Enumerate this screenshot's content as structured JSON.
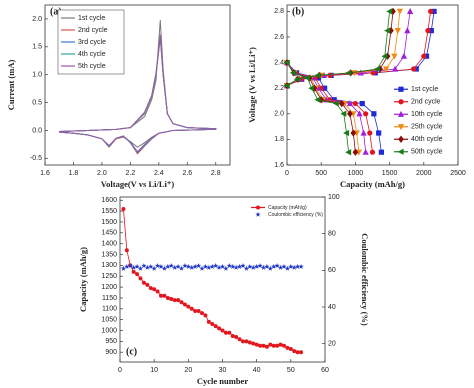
{
  "chart_data": [
    {
      "type": "line",
      "label": "(a)",
      "xlabel": "Voltage(V vs Li/Li⁺)",
      "ylabel": "Current (mA)",
      "xlim": [
        1.6,
        2.9
      ],
      "ylim": [
        -0.62,
        2.25
      ],
      "xticks": [
        1.6,
        1.8,
        {
          "value": 2,
          "label": "2.0"
        },
        2.2,
        2.4,
        2.6,
        2.8
      ],
      "yticks": [
        -0.5,
        {
          "value": 0,
          "label": "0.0"
        },
        0.5,
        {
          "value": 1,
          "label": "1.0"
        },
        1.5,
        {
          "value": 2,
          "label": "2.0"
        }
      ],
      "legend": "upper left",
      "legend_frame": true,
      "x": [
        1.7,
        1.9,
        2.1,
        2.2,
        2.3,
        2.35,
        2.38,
        2.41,
        2.43,
        2.46,
        2.5,
        2.6,
        2.8,
        2.8,
        2.5,
        2.4,
        2.35,
        2.3,
        2.25,
        2.2,
        2.15,
        2.1,
        2.05,
        2.0,
        1.9,
        1.8,
        1.7
      ],
      "series": [
        {
          "name": "1st cycle",
          "color": "#7a7a7a",
          "values": [
            -0.02,
            0,
            0.02,
            0.05,
            0.25,
            0.55,
            0.9,
            1.98,
            1.1,
            0.3,
            0.12,
            0.05,
            0.03,
            0.02,
            0,
            -0.05,
            -0.12,
            -0.22,
            -0.3,
            -0.2,
            -0.12,
            -0.15,
            -0.28,
            -0.15,
            -0.08,
            -0.05,
            -0.03
          ]
        },
        {
          "name": "2nd cycle",
          "color": "#e0504f",
          "values": [
            -0.02,
            0,
            0.02,
            0.05,
            0.3,
            0.6,
            1.0,
            1.65,
            1.0,
            0.3,
            0.12,
            0.05,
            0.03,
            0.02,
            0,
            -0.05,
            -0.15,
            -0.28,
            -0.42,
            -0.22,
            -0.1,
            -0.15,
            -0.3,
            -0.15,
            -0.08,
            -0.05,
            -0.03
          ]
        },
        {
          "name": "3rd cycle",
          "color": "#3a78d0",
          "values": [
            -0.02,
            0,
            0.02,
            0.05,
            0.32,
            0.62,
            1.02,
            1.7,
            1.0,
            0.3,
            0.12,
            0.05,
            0.03,
            0.02,
            0,
            -0.05,
            -0.15,
            -0.27,
            -0.4,
            -0.22,
            -0.1,
            -0.14,
            -0.29,
            -0.15,
            -0.08,
            -0.05,
            -0.03
          ]
        },
        {
          "name": "4th cycle",
          "color": "#33a3a3",
          "values": [
            -0.02,
            0,
            0.02,
            0.05,
            0.31,
            0.61,
            1.0,
            1.68,
            1.0,
            0.3,
            0.12,
            0.05,
            0.03,
            0.02,
            0,
            -0.05,
            -0.14,
            -0.26,
            -0.39,
            -0.21,
            -0.1,
            -0.14,
            -0.28,
            -0.15,
            -0.08,
            -0.05,
            -0.03
          ]
        },
        {
          "name": "5th cycle",
          "color": "#9b59a6",
          "values": [
            -0.02,
            0,
            0.02,
            0.05,
            0.33,
            0.63,
            1.03,
            1.72,
            1.0,
            0.3,
            0.12,
            0.05,
            0.03,
            0.02,
            0,
            -0.05,
            -0.14,
            -0.25,
            -0.38,
            -0.21,
            -0.1,
            -0.14,
            -0.27,
            -0.15,
            -0.08,
            -0.05,
            -0.03
          ]
        }
      ]
    },
    {
      "type": "line",
      "label": "(b)",
      "xlabel": "Capacity (mAh/g)",
      "ylabel": "Voltage (V vs Li/Li⁺)",
      "xlim": [
        0,
        2500
      ],
      "ylim": [
        1.6,
        2.85
      ],
      "xticks": [
        0,
        500,
        1000,
        1500,
        2000,
        2500
      ],
      "yticks": [
        1.6,
        1.8,
        {
          "value": 2,
          "label": "2.0"
        },
        2.2,
        2.4,
        2.6,
        2.8
      ],
      "legend": "lower right",
      "legend_frame": false,
      "series": [
        {
          "name": "1st cycle",
          "color": "#1f2bd6",
          "marker": "square",
          "x": [
            0,
            140,
            460,
            550,
            690,
            1100,
            1270,
            1340,
            1380,
            null,
            0,
            215,
            645,
            1290,
            1890,
            2040,
            2110,
            2150
          ],
          "values": [
            2.4,
            2.32,
            2.28,
            2.2,
            2.11,
            2.08,
            2.0,
            1.85,
            1.7,
            null,
            2.22,
            2.27,
            2.3,
            2.32,
            2.35,
            2.45,
            2.65,
            2.8
          ]
        },
        {
          "name": "2nd cycle",
          "color": "#e3161e",
          "marker": "circle",
          "x": [
            0,
            125,
            410,
            500,
            625,
            1000,
            1150,
            1210,
            1250,
            null,
            0,
            210,
            630,
            1260,
            1850,
            2000,
            2060,
            2100
          ],
          "values": [
            2.4,
            2.32,
            2.28,
            2.2,
            2.11,
            2.08,
            2.0,
            1.85,
            1.7,
            null,
            2.22,
            2.27,
            2.3,
            2.32,
            2.35,
            2.45,
            2.65,
            2.8
          ]
        },
        {
          "name": "10th cycle",
          "color": "#a020d8",
          "marker": "triangle-up",
          "x": [
            0,
            115,
            380,
            460,
            575,
            920,
            1060,
            1120,
            1150,
            null,
            0,
            180,
            540,
            1080,
            1580,
            1710,
            1760,
            1800
          ],
          "values": [
            2.4,
            2.32,
            2.28,
            2.2,
            2.11,
            2.08,
            2.0,
            1.85,
            1.7,
            null,
            2.22,
            2.27,
            2.3,
            2.32,
            2.35,
            2.45,
            2.65,
            2.8
          ]
        },
        {
          "name": "25th cycle",
          "color": "#f08a10",
          "marker": "triangle-down",
          "x": [
            0,
            105,
            350,
            420,
            525,
            840,
            970,
            1020,
            1050,
            null,
            0,
            165,
            500,
            990,
            1450,
            1570,
            1620,
            1650
          ],
          "values": [
            2.4,
            2.32,
            2.28,
            2.2,
            2.11,
            2.08,
            2.0,
            1.85,
            1.7,
            null,
            2.22,
            2.27,
            2.3,
            2.32,
            2.35,
            2.45,
            2.65,
            2.8
          ]
        },
        {
          "name": "40th cycle",
          "color": "#8b0a0a",
          "marker": "diamond",
          "x": [
            0,
            100,
            330,
            400,
            500,
            800,
            920,
            970,
            1000,
            null,
            0,
            155,
            470,
            930,
            1360,
            1470,
            1520,
            1550
          ],
          "values": [
            2.4,
            2.32,
            2.28,
            2.2,
            2.11,
            2.08,
            2.0,
            1.85,
            1.7,
            null,
            2.22,
            2.27,
            2.3,
            2.32,
            2.35,
            2.45,
            2.65,
            2.8
          ]
        },
        {
          "name": "50th cycle",
          "color": "#177a17",
          "marker": "triangle-left",
          "x": [
            0,
            90,
            300,
            360,
            450,
            720,
            830,
            870,
            900,
            null,
            0,
            150,
            450,
            900,
            1320,
            1430,
            1470,
            1500
          ],
          "values": [
            2.4,
            2.32,
            2.28,
            2.2,
            2.11,
            2.08,
            2.0,
            1.85,
            1.7,
            null,
            2.22,
            2.27,
            2.3,
            2.32,
            2.35,
            2.45,
            2.65,
            2.8
          ]
        }
      ]
    },
    {
      "type": "line",
      "label": "(c)",
      "xlabel": "Cycle number",
      "ylabel": "Capacity (mAh/g)",
      "y2label": "Coulombic efficiency (%)",
      "xlim": [
        0,
        60
      ],
      "ylim": [
        855,
        1615
      ],
      "y2lim": [
        10,
        100
      ],
      "xticks": [
        0,
        10,
        20,
        30,
        40,
        50,
        60
      ],
      "yticks": [
        900,
        950,
        1000,
        1050,
        1100,
        1150,
        1200,
        1250,
        1300,
        1350,
        1400,
        1450,
        1500,
        1550,
        1600
      ],
      "y2ticks": [
        20,
        40,
        60,
        80,
        100
      ],
      "legend": "upper right",
      "legend_frame": false,
      "x": [
        1,
        2,
        3,
        4,
        5,
        6,
        7,
        8,
        9,
        10,
        11,
        12,
        13,
        14,
        15,
        16,
        17,
        18,
        19,
        20,
        21,
        22,
        23,
        24,
        25,
        26,
        27,
        28,
        29,
        30,
        31,
        32,
        33,
        34,
        35,
        36,
        37,
        38,
        39,
        40,
        41,
        42,
        43,
        44,
        45,
        46,
        47,
        48,
        49,
        50,
        51,
        52,
        53
      ],
      "series": [
        {
          "name": "Capacity (mAh/g)",
          "color": "#e3161e",
          "marker": "circle",
          "line": true,
          "values": [
            1560,
            1370,
            1300,
            1270,
            1260,
            1240,
            1220,
            1210,
            1195,
            1190,
            1180,
            1160,
            1160,
            1150,
            1145,
            1140,
            1140,
            1130,
            1120,
            1110,
            1100,
            1090,
            1090,
            1080,
            1070,
            1040,
            1030,
            1020,
            1010,
            1000,
            990,
            990,
            975,
            970,
            960,
            950,
            950,
            945,
            940,
            935,
            930,
            930,
            925,
            935,
            930,
            930,
            935,
            930,
            920,
            915,
            905,
            900,
            900
          ]
        },
        {
          "name": "Coulombic efficiency (%)",
          "color": "#2038c8",
          "marker": "star",
          "line": false,
          "axis": "y2",
          "values": [
            61,
            62,
            62.5,
            61.5,
            62,
            61,
            62.5,
            61.5,
            62,
            61,
            62.5,
            62,
            61,
            62,
            62.5,
            61.5,
            62,
            61,
            62.5,
            62,
            61.5,
            62,
            62.5,
            61,
            62,
            61.5,
            62,
            62.5,
            61.5,
            62,
            61,
            62.5,
            62,
            61.5,
            62,
            62.5,
            61,
            62,
            61.5,
            62,
            62.5,
            61.5,
            62,
            61,
            62,
            62.5,
            61.5,
            62,
            61,
            62,
            61.5,
            62,
            62
          ]
        }
      ]
    }
  ]
}
